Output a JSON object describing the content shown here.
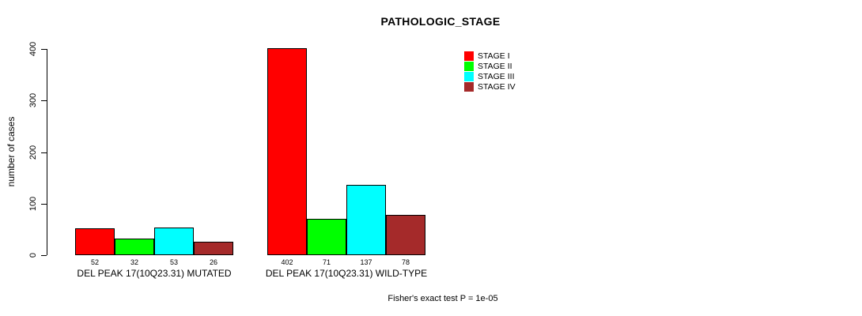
{
  "chart_data": {
    "type": "bar",
    "title": "PATHOLOGIC_STAGE",
    "ylabel": "number of cases",
    "ylim": [
      0,
      400
    ],
    "yticks": [
      0,
      100,
      200,
      300,
      400
    ],
    "categories": [
      "DEL PEAK 17(10Q23.31) MUTATED",
      "DEL PEAK 17(10Q23.31) WILD-TYPE"
    ],
    "series": [
      {
        "name": "STAGE I",
        "color": "#ff0000",
        "values": [
          52,
          402
        ]
      },
      {
        "name": "STAGE II",
        "color": "#00ff00",
        "values": [
          32,
          71
        ]
      },
      {
        "name": "STAGE III",
        "color": "#00ffff",
        "values": [
          53,
          137
        ]
      },
      {
        "name": "STAGE IV",
        "color": "#a52a2a",
        "values": [
          26,
          78
        ]
      }
    ],
    "groups": [
      {
        "label": "DEL PEAK 17(10Q23.31) MUTATED",
        "values": [
          52,
          32,
          53,
          26
        ]
      },
      {
        "label": "DEL PEAK 17(10Q23.31) WILD-TYPE",
        "values": [
          402,
          71,
          137,
          78
        ]
      }
    ],
    "legend": [
      {
        "label": "STAGE I",
        "color": "#ff0000"
      },
      {
        "label": "STAGE II",
        "color": "#00ff00"
      },
      {
        "label": "STAGE III",
        "color": "#00ffff"
      },
      {
        "label": "STAGE IV",
        "color": "#a52a2a"
      }
    ],
    "legend_position": "top-right",
    "grid": false,
    "bar_border_color": "#000000",
    "axis_color": "#000000",
    "footnote": "Fisher's exact test P = 1e-05"
  }
}
